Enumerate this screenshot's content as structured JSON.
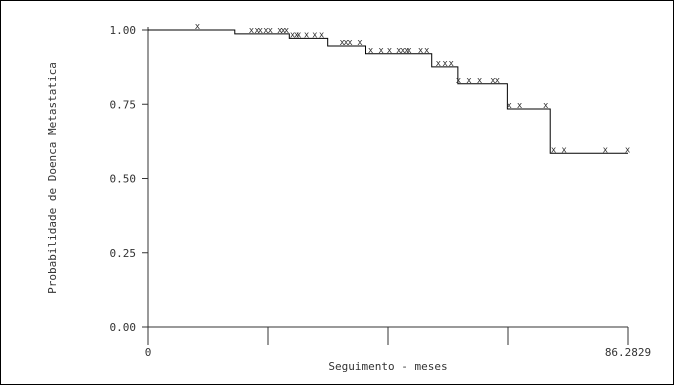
{
  "chart_data": {
    "type": "line",
    "title": "",
    "xlabel": "Seguimento - meses",
    "ylabel": "Probabilidade de Doenca Metastatica",
    "x_tick_labels": [
      "0",
      "86.2829"
    ],
    "y_tick_labels": [
      "0.00",
      "0.25",
      "0.50",
      "0.75",
      "1.00"
    ],
    "xlim": [
      0,
      86.2829
    ],
    "ylim": [
      0,
      1
    ],
    "grid": false,
    "legend": "none",
    "x_minor_ticks": [
      21.57,
      43.14,
      64.71
    ],
    "step_curve": [
      {
        "x": 0,
        "y": 1.0
      },
      {
        "x": 15.6,
        "y": 0.987
      },
      {
        "x": 25.4,
        "y": 0.972
      },
      {
        "x": 32.3,
        "y": 0.946
      },
      {
        "x": 39.1,
        "y": 0.92
      },
      {
        "x": 51.0,
        "y": 0.876
      },
      {
        "x": 55.7,
        "y": 0.819
      },
      {
        "x": 64.6,
        "y": 0.734
      },
      {
        "x": 72.3,
        "y": 0.585
      },
      {
        "x": 86.2829,
        "y": 0.585
      }
    ],
    "censored": [
      {
        "x": 8.9,
        "y": 1.0
      },
      {
        "x": 18.6,
        "y": 0.987
      },
      {
        "x": 19.6,
        "y": 0.987
      },
      {
        "x": 20.2,
        "y": 0.987
      },
      {
        "x": 21.2,
        "y": 0.987
      },
      {
        "x": 22.0,
        "y": 0.987
      },
      {
        "x": 23.7,
        "y": 0.987
      },
      {
        "x": 24.3,
        "y": 0.987
      },
      {
        "x": 24.9,
        "y": 0.987
      },
      {
        "x": 26.0,
        "y": 0.972
      },
      {
        "x": 26.7,
        "y": 0.972
      },
      {
        "x": 27.1,
        "y": 0.972
      },
      {
        "x": 28.5,
        "y": 0.972
      },
      {
        "x": 30.0,
        "y": 0.972
      },
      {
        "x": 31.2,
        "y": 0.972
      },
      {
        "x": 34.9,
        "y": 0.946
      },
      {
        "x": 35.6,
        "y": 0.946
      },
      {
        "x": 36.3,
        "y": 0.946
      },
      {
        "x": 38.1,
        "y": 0.946
      },
      {
        "x": 40.0,
        "y": 0.92
      },
      {
        "x": 41.9,
        "y": 0.92
      },
      {
        "x": 43.4,
        "y": 0.92
      },
      {
        "x": 45.1,
        "y": 0.92
      },
      {
        "x": 45.8,
        "y": 0.92
      },
      {
        "x": 46.5,
        "y": 0.92
      },
      {
        "x": 46.9,
        "y": 0.92
      },
      {
        "x": 49.0,
        "y": 0.92
      },
      {
        "x": 50.1,
        "y": 0.92
      },
      {
        "x": 52.2,
        "y": 0.876
      },
      {
        "x": 53.4,
        "y": 0.876
      },
      {
        "x": 54.5,
        "y": 0.876
      },
      {
        "x": 55.8,
        "y": 0.819
      },
      {
        "x": 57.7,
        "y": 0.819
      },
      {
        "x": 59.6,
        "y": 0.819
      },
      {
        "x": 62.0,
        "y": 0.819
      },
      {
        "x": 62.8,
        "y": 0.819
      },
      {
        "x": 64.9,
        "y": 0.734
      },
      {
        "x": 66.8,
        "y": 0.734
      },
      {
        "x": 71.5,
        "y": 0.734
      },
      {
        "x": 72.9,
        "y": 0.585
      },
      {
        "x": 74.8,
        "y": 0.585
      },
      {
        "x": 82.2,
        "y": 0.585
      },
      {
        "x": 86.2,
        "y": 0.585
      }
    ],
    "censor_marker": "x",
    "colors": {
      "line": "#000000",
      "marker": "#333333",
      "axis": "#333333",
      "text": "#333333"
    }
  }
}
